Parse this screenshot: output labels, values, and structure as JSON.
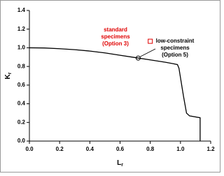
{
  "chart_data": {
    "type": "line",
    "x_label": "L",
    "x_label_sub": "r",
    "y_label": "K",
    "y_label_sub": "r",
    "xlim": [
      0,
      1.2
    ],
    "ylim": [
      0,
      1.4
    ],
    "xticks": [
      {
        "value": 0,
        "label": "0.0"
      },
      0.2,
      0.4,
      0.6,
      0.8,
      {
        "value": 1,
        "label": "1.0"
      },
      1.2
    ],
    "yticks": [
      {
        "value": 0,
        "label": "0.0"
      },
      0.2,
      0.4,
      0.6,
      0.8,
      {
        "value": 1,
        "label": "1.0"
      },
      1.2,
      1.4
    ],
    "series": [
      {
        "type": "line",
        "color": "#000000",
        "x": [
          0,
          0.1,
          0.2,
          0.3,
          0.4,
          0.5,
          0.6,
          0.7,
          0.8,
          0.9,
          0.95,
          0.98,
          0.99,
          1.0,
          1.02,
          1.04,
          1.06,
          1.13,
          1.13
        ],
        "values": [
          1.0,
          0.998,
          0.99,
          0.98,
          0.965,
          0.945,
          0.92,
          0.895,
          0.87,
          0.845,
          0.83,
          0.82,
          0.78,
          0.68,
          0.48,
          0.3,
          0.27,
          0.25,
          0
        ]
      },
      {
        "type": "scatter",
        "marker": "square",
        "color": "#e00000",
        "x": [
          0.8
        ],
        "values": [
          1.07
        ]
      },
      {
        "type": "scatter",
        "marker": "circle",
        "color": "#000000",
        "x": [
          0.72
        ],
        "values": [
          0.89
        ]
      }
    ],
    "annotations": [
      {
        "lines": [
          "standard",
          "specimens",
          "(Option 3)"
        ],
        "color": "#e00000"
      },
      {
        "lines": [
          "low-constraint",
          "specimens",
          "(Option 5)"
        ],
        "color": "#000000"
      }
    ]
  }
}
